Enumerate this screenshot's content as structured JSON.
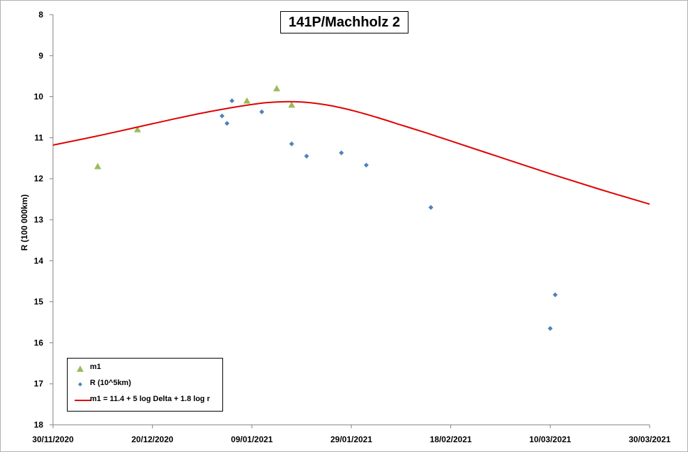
{
  "chart_data": {
    "type": "scatter",
    "title": "141P/Machholz 2",
    "xlabel": "",
    "ylabel": "R (100 000km)",
    "ylim": [
      8,
      18
    ],
    "y_inverted": true,
    "y_ticks": [
      "8",
      "9",
      "10",
      "11",
      "12",
      "13",
      "14",
      "15",
      "16",
      "17",
      "18"
    ],
    "x_ticks": [
      "30/11/2020",
      "20/12/2020",
      "09/01/2021",
      "29/01/2021",
      "18/02/2021",
      "10/03/2021",
      "30/03/2021"
    ],
    "x_range": [
      "30/11/2020",
      "30/03/2021"
    ],
    "grid": false,
    "legend_position": "bottom-left",
    "series": [
      {
        "name": "m1",
        "kind": "triangle",
        "color": "#9bbb59",
        "points": [
          {
            "x": "09/12/2020",
            "y": 11.7
          },
          {
            "x": "17/12/2020",
            "y": 10.8
          },
          {
            "x": "08/01/2021",
            "y": 10.1
          },
          {
            "x": "14/01/2021",
            "y": 9.8
          },
          {
            "x": "17/01/2021",
            "y": 10.2
          }
        ]
      },
      {
        "name": "R (10^5km)",
        "kind": "diamond",
        "color": "#4f81bd",
        "points": [
          {
            "x": "03/01/2021",
            "y": 10.47
          },
          {
            "x": "04/01/2021",
            "y": 10.65
          },
          {
            "x": "05/01/2021",
            "y": 10.1
          },
          {
            "x": "11/01/2021",
            "y": 10.37
          },
          {
            "x": "17/01/2021",
            "y": 11.15
          },
          {
            "x": "20/01/2021",
            "y": 11.45
          },
          {
            "x": "27/01/2021",
            "y": 11.37
          },
          {
            "x": "01/02/2021",
            "y": 11.67
          },
          {
            "x": "14/02/2021",
            "y": 12.7
          },
          {
            "x": "10/03/2021",
            "y": 15.65
          },
          {
            "x": "11/03/2021",
            "y": 14.83
          }
        ]
      },
      {
        "name": "m1 = 11.4 + 5 log Delta + 1.8 log r",
        "kind": "line",
        "color": "#e00000",
        "points": [
          {
            "x": "30/11/2020",
            "y": 11.18
          },
          {
            "x": "10/12/2020",
            "y": 10.93
          },
          {
            "x": "20/12/2020",
            "y": 10.66
          },
          {
            "x": "30/12/2020",
            "y": 10.4
          },
          {
            "x": "09/01/2021",
            "y": 10.19
          },
          {
            "x": "14/01/2021",
            "y": 10.13
          },
          {
            "x": "19/01/2021",
            "y": 10.13
          },
          {
            "x": "24/01/2021",
            "y": 10.2
          },
          {
            "x": "29/01/2021",
            "y": 10.33
          },
          {
            "x": "03/02/2021",
            "y": 10.5
          },
          {
            "x": "08/02/2021",
            "y": 10.69
          },
          {
            "x": "13/02/2021",
            "y": 10.88
          },
          {
            "x": "18/02/2021",
            "y": 11.08
          },
          {
            "x": "28/02/2021",
            "y": 11.48
          },
          {
            "x": "10/03/2021",
            "y": 11.88
          },
          {
            "x": "20/03/2021",
            "y": 12.26
          },
          {
            "x": "30/03/2021",
            "y": 12.62
          }
        ]
      }
    ]
  }
}
